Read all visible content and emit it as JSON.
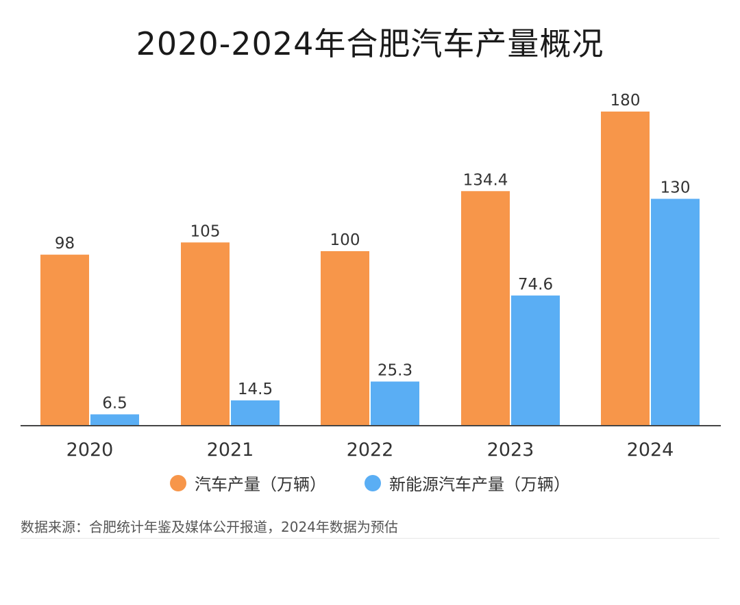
{
  "title": "2020-2024年合肥汽车产量概况",
  "colors": {
    "series1": "#F7964A",
    "series2": "#5AAEF4",
    "axis": "#444444"
  },
  "chart_data": {
    "type": "bar",
    "title": "2020-2024年合肥汽车产量概况",
    "categories": [
      "2020",
      "2021",
      "2022",
      "2023",
      "2024"
    ],
    "series": [
      {
        "name": "汽车产量（万辆）",
        "values": [
          98,
          105,
          100,
          134.4,
          180
        ],
        "labels": [
          "98",
          "105",
          "100",
          "134.4",
          "180"
        ]
      },
      {
        "name": "新能源汽车产量（万辆）",
        "values": [
          6.5,
          14.5,
          25.3,
          74.6,
          130
        ],
        "labels": [
          "6.5",
          "14.5",
          "25.3",
          "74.6",
          "130"
        ]
      }
    ],
    "ylim": [
      0,
      180
    ],
    "grid": false,
    "legend_position": "bottom"
  },
  "legend": [
    {
      "label": "汽车产量（万辆）"
    },
    {
      "label": "新能源汽车产量（万辆）"
    }
  ],
  "source": "数据来源：合肥统计年鉴及媒体公开报道，2024年数据为预估"
}
